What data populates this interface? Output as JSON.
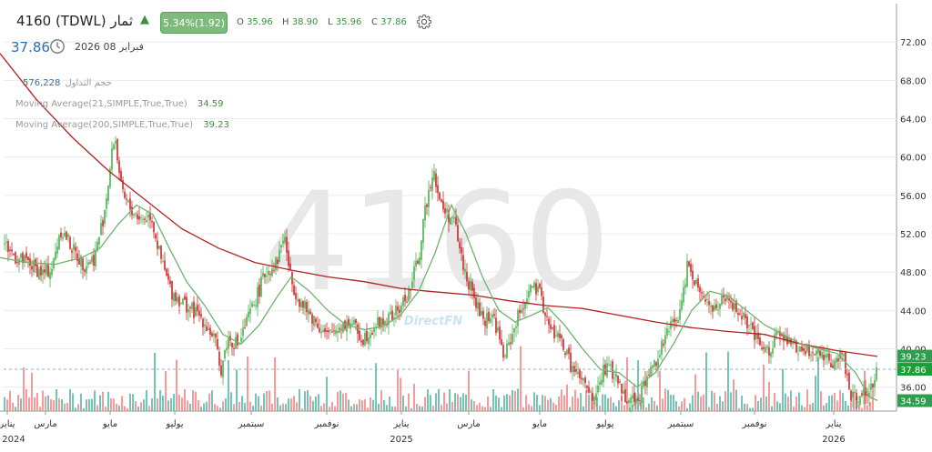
{
  "header": {
    "title": "4160  (TDWL) ثمار",
    "change": "5.34%(1.92)",
    "ohlc": [
      {
        "label": "O",
        "value": "35.96"
      },
      {
        "label": "H",
        "value": "38.90"
      },
      {
        "label": "L",
        "value": "35.96"
      },
      {
        "label": "C",
        "value": "37.86"
      }
    ],
    "last_price": "37.86",
    "date": "فبراير 08 2026"
  },
  "indicators": {
    "volume_label": "حجم التداول",
    "volume_value": "576,228",
    "ma21_label": "Moving Average(21,SIMPLE,True,True)",
    "ma21_value": "34.59",
    "ma200_label": "Moving Average(200,SIMPLE,True,True)",
    "ma200_value": "39.23"
  },
  "watermark": {
    "symbol": "4160",
    "brand": "DirectFN"
  },
  "colors": {
    "up": "#4caf50",
    "down": "#c62828",
    "ma21": "#6fb36f",
    "ma200": "#b22222",
    "vol_up": "#5fb8a8",
    "vol_down": "#f08c8c",
    "last_tag": "#1e9e3a",
    "ma200_tag": "#2e9e4e",
    "ma21_tag": "#2e9e4e",
    "label_green": "#3f8f3f",
    "label_blue": "#2a6fb3"
  },
  "chart_data": {
    "type": "candlestick",
    "ylim": [
      33.5,
      76
    ],
    "y_ticks": [
      "72.00",
      "68.00",
      "64.00",
      "60.00",
      "56.00",
      "52.00",
      "48.00",
      "44.00",
      "40.00",
      "36.00"
    ],
    "x_tick_labels": [
      "يناير",
      "مارس",
      "مايو",
      "يوليو",
      "سبتمبر",
      "نوفمبر",
      "يناير",
      "مارس",
      "مايو",
      "يوليو",
      "سبتمبر",
      "نوفمبر",
      "يناير"
    ],
    "year_labels": [
      "2024",
      "2025",
      "2026"
    ],
    "price_path": [
      [
        0,
        51.5
      ],
      [
        18,
        49.5
      ],
      [
        33,
        48.8
      ],
      [
        48,
        47.8
      ],
      [
        58,
        48.5
      ],
      [
        66,
        52.5
      ],
      [
        74,
        51.5
      ],
      [
        82,
        50.0
      ],
      [
        92,
        48.8
      ],
      [
        104,
        49.5
      ],
      [
        114,
        54.0
      ],
      [
        120,
        58.0
      ],
      [
        126,
        62.5
      ],
      [
        134,
        56.0
      ],
      [
        144,
        54.5
      ],
      [
        156,
        53.5
      ],
      [
        166,
        54.0
      ],
      [
        176,
        49.5
      ],
      [
        188,
        46.0
      ],
      [
        205,
        44.5
      ],
      [
        222,
        43.2
      ],
      [
        236,
        41.0
      ],
      [
        242,
        37.5
      ],
      [
        250,
        41.0
      ],
      [
        262,
        40.5
      ],
      [
        276,
        44.0
      ],
      [
        292,
        48.0
      ],
      [
        304,
        49.0
      ],
      [
        312,
        52.0
      ],
      [
        320,
        47.0
      ],
      [
        332,
        44.5
      ],
      [
        346,
        43.0
      ],
      [
        360,
        41.2
      ],
      [
        374,
        42.5
      ],
      [
        386,
        42.8
      ],
      [
        398,
        41.0
      ],
      [
        412,
        42.5
      ],
      [
        426,
        43.0
      ],
      [
        438,
        44.0
      ],
      [
        450,
        46.0
      ],
      [
        462,
        50.5
      ],
      [
        468,
        55.0
      ],
      [
        476,
        59.0
      ],
      [
        484,
        55.0
      ],
      [
        492,
        54.0
      ],
      [
        500,
        53.0
      ],
      [
        508,
        49.0
      ],
      [
        518,
        46.0
      ],
      [
        530,
        43.0
      ],
      [
        542,
        43.5
      ],
      [
        554,
        39.0
      ],
      [
        566,
        42.5
      ],
      [
        576,
        45.0
      ],
      [
        584,
        46.5
      ],
      [
        594,
        45.5
      ],
      [
        604,
        42.0
      ],
      [
        616,
        41.0
      ],
      [
        628,
        38.0
      ],
      [
        640,
        36.5
      ],
      [
        652,
        34.5
      ],
      [
        664,
        38.0
      ],
      [
        674,
        37.5
      ],
      [
        684,
        35.5
      ],
      [
        694,
        34.6
      ],
      [
        704,
        35.5
      ],
      [
        714,
        37.5
      ],
      [
        726,
        40.0
      ],
      [
        738,
        42.5
      ],
      [
        748,
        44.0
      ],
      [
        756,
        49.5
      ],
      [
        764,
        47.0
      ],
      [
        772,
        46.0
      ],
      [
        782,
        44.0
      ],
      [
        794,
        45.0
      ],
      [
        806,
        44.5
      ],
      [
        818,
        43.0
      ],
      [
        830,
        41.0
      ],
      [
        842,
        39.5
      ],
      [
        854,
        41.5
      ],
      [
        866,
        40.5
      ],
      [
        878,
        40.0
      ],
      [
        890,
        39.5
      ],
      [
        902,
        39.8
      ],
      [
        914,
        38.5
      ],
      [
        926,
        39.5
      ],
      [
        934,
        35.5
      ],
      [
        942,
        35.0
      ],
      [
        952,
        35.5
      ],
      [
        958,
        35.9
      ],
      [
        964,
        37.9
      ]
    ],
    "ma21_path": [
      [
        0,
        49.5
      ],
      [
        30,
        49.0
      ],
      [
        60,
        48.8
      ],
      [
        90,
        49.5
      ],
      [
        110,
        50.5
      ],
      [
        130,
        53.0
      ],
      [
        150,
        55.0
      ],
      [
        168,
        54.0
      ],
      [
        186,
        50.5
      ],
      [
        205,
        47.0
      ],
      [
        225,
        44.5
      ],
      [
        245,
        41.5
      ],
      [
        265,
        40.5
      ],
      [
        285,
        42.5
      ],
      [
        305,
        45.5
      ],
      [
        320,
        47.5
      ],
      [
        340,
        46.0
      ],
      [
        360,
        44.0
      ],
      [
        380,
        42.5
      ],
      [
        400,
        42.0
      ],
      [
        420,
        42.3
      ],
      [
        440,
        43.5
      ],
      [
        460,
        46.0
      ],
      [
        478,
        50.0
      ],
      [
        496,
        55.0
      ],
      [
        512,
        52.0
      ],
      [
        530,
        47.5
      ],
      [
        548,
        44.0
      ],
      [
        566,
        42.8
      ],
      [
        584,
        43.5
      ],
      [
        602,
        44.3
      ],
      [
        620,
        42.5
      ],
      [
        640,
        40.0
      ],
      [
        660,
        37.8
      ],
      [
        680,
        37.5
      ],
      [
        700,
        36.0
      ],
      [
        720,
        37.5
      ],
      [
        740,
        40.5
      ],
      [
        760,
        44.0
      ],
      [
        780,
        46.0
      ],
      [
        800,
        45.5
      ],
      [
        820,
        44.0
      ],
      [
        840,
        42.5
      ],
      [
        860,
        41.5
      ],
      [
        880,
        40.5
      ],
      [
        900,
        40.0
      ],
      [
        920,
        39.5
      ],
      [
        940,
        37.5
      ],
      [
        955,
        35.0
      ],
      [
        964,
        34.6
      ]
    ],
    "ma200_path": [
      [
        0,
        70.8
      ],
      [
        40,
        66.0
      ],
      [
        80,
        62.0
      ],
      [
        120,
        58.5
      ],
      [
        160,
        55.5
      ],
      [
        200,
        52.5
      ],
      [
        240,
        50.5
      ],
      [
        280,
        49.0
      ],
      [
        320,
        48.2
      ],
      [
        360,
        47.5
      ],
      [
        400,
        47.0
      ],
      [
        440,
        46.3
      ],
      [
        470,
        46.0
      ],
      [
        520,
        45.6
      ],
      [
        560,
        45.0
      ],
      [
        600,
        44.5
      ],
      [
        640,
        44.2
      ],
      [
        680,
        43.5
      ],
      [
        720,
        42.8
      ],
      [
        760,
        42.2
      ],
      [
        800,
        41.8
      ],
      [
        840,
        41.5
      ],
      [
        880,
        40.5
      ],
      [
        920,
        39.8
      ],
      [
        964,
        39.2
      ]
    ],
    "volume_scale": {
      "max": 100
    },
    "last_value": "37.86",
    "ma200_value": "39.23",
    "ma21_value": "34.59"
  }
}
